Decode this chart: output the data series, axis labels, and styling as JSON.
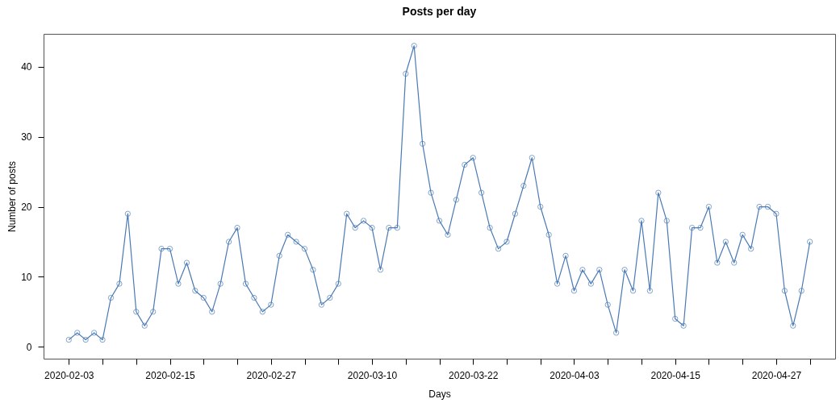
{
  "chart_data": {
    "type": "line",
    "title": "Posts per day",
    "xlabel": "Days",
    "ylabel": "Number of posts",
    "x": [
      "2020-02-03",
      "2020-02-04",
      "2020-02-05",
      "2020-02-06",
      "2020-02-07",
      "2020-02-08",
      "2020-02-09",
      "2020-02-10",
      "2020-02-11",
      "2020-02-12",
      "2020-02-13",
      "2020-02-14",
      "2020-02-15",
      "2020-02-16",
      "2020-02-17",
      "2020-02-18",
      "2020-02-19",
      "2020-02-20",
      "2020-02-21",
      "2020-02-22",
      "2020-02-23",
      "2020-02-24",
      "2020-02-25",
      "2020-02-26",
      "2020-02-27",
      "2020-02-28",
      "2020-02-29",
      "2020-03-01",
      "2020-03-02",
      "2020-03-03",
      "2020-03-04",
      "2020-03-05",
      "2020-03-06",
      "2020-03-07",
      "2020-03-08",
      "2020-03-09",
      "2020-03-10",
      "2020-03-11",
      "2020-03-12",
      "2020-03-13",
      "2020-03-14",
      "2020-03-15",
      "2020-03-16",
      "2020-03-17",
      "2020-03-18",
      "2020-03-19",
      "2020-03-20",
      "2020-03-21",
      "2020-03-22",
      "2020-03-23",
      "2020-03-24",
      "2020-03-25",
      "2020-03-26",
      "2020-03-27",
      "2020-03-28",
      "2020-03-29",
      "2020-03-30",
      "2020-03-31",
      "2020-04-01",
      "2020-04-02",
      "2020-04-03",
      "2020-04-04",
      "2020-04-05",
      "2020-04-06",
      "2020-04-07",
      "2020-04-08",
      "2020-04-09",
      "2020-04-10",
      "2020-04-11",
      "2020-04-12",
      "2020-04-13",
      "2020-04-14",
      "2020-04-15",
      "2020-04-16",
      "2020-04-17",
      "2020-04-18",
      "2020-04-19",
      "2020-04-20",
      "2020-04-21",
      "2020-04-22",
      "2020-04-23",
      "2020-04-24",
      "2020-04-25",
      "2020-04-26",
      "2020-04-27",
      "2020-04-28",
      "2020-04-29",
      "2020-04-30",
      "2020-05-01"
    ],
    "series": [
      {
        "color": "#4a7ab5",
        "values": [
          1,
          2,
          1,
          2,
          1,
          7,
          9,
          19,
          5,
          3,
          5,
          14,
          14,
          9,
          12,
          8,
          7,
          5,
          9,
          15,
          17,
          9,
          7,
          5,
          6,
          13,
          16,
          15,
          14,
          11,
          6,
          7,
          9,
          19,
          17,
          18,
          17,
          11,
          17,
          17,
          39,
          43,
          29,
          22,
          18,
          16,
          21,
          26,
          27,
          22,
          17,
          14,
          15,
          19,
          23,
          27,
          20,
          16,
          9,
          13,
          8,
          11,
          9,
          11,
          6,
          2,
          11,
          8,
          18,
          8,
          22,
          18,
          4,
          3,
          17,
          17,
          20,
          12,
          15,
          12,
          16,
          14,
          20,
          20,
          19,
          8,
          3,
          8,
          15
        ]
      }
    ],
    "xlim": [
      "2020-01-31",
      "2020-05-04"
    ],
    "xticks": [
      "2020-02-03",
      {
        "value": "2020-02-07",
        "label": null
      },
      {
        "value": "2020-02-11",
        "label": null
      },
      "2020-02-15",
      {
        "value": "2020-02-19",
        "label": null
      },
      {
        "value": "2020-02-23",
        "label": null
      },
      "2020-02-27",
      {
        "value": "2020-03-02",
        "label": null
      },
      {
        "value": "2020-03-06",
        "label": null
      },
      "2020-03-10",
      {
        "value": "2020-03-14",
        "label": null
      },
      {
        "value": "2020-03-18",
        "label": null
      },
      "2020-03-22",
      {
        "value": "2020-03-26",
        "label": null
      },
      {
        "value": "2020-03-30",
        "label": null
      },
      "2020-04-03",
      {
        "value": "2020-04-07",
        "label": null
      },
      {
        "value": "2020-04-11",
        "label": null
      },
      "2020-04-15",
      {
        "value": "2020-04-19",
        "label": null
      },
      {
        "value": "2020-04-23",
        "label": null
      },
      "2020-04-27",
      {
        "value": "2020-05-01",
        "label": null
      }
    ],
    "ylim": [
      -1.7,
      44.7
    ],
    "yticks": [
      0,
      10,
      20,
      30,
      40
    ],
    "grid": false,
    "marker": "circle",
    "line_style": "solid"
  }
}
